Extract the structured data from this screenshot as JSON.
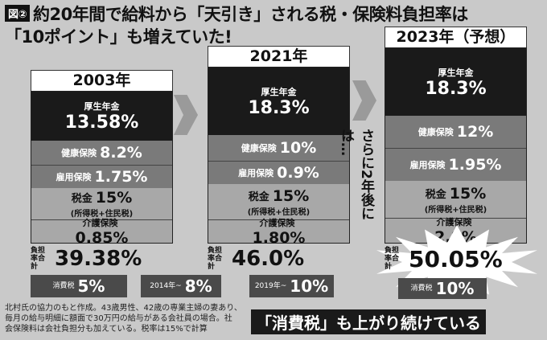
{
  "title": {
    "figure_label": "図②",
    "line1": "約20年間で給料から「天引き」される税・保険料負担率は",
    "line2": "「10ポイント」も増えていた!"
  },
  "arrow_text": "さらに2年後には…",
  "banner": "「消費税」も上がり続けている",
  "footnote": {
    "line1": "北村氏の協力のもと作成。43歳男性、42歳の専業主婦の妻あり、",
    "line2": "毎月の給与明細に額面で30万円の給与がある会社員の場合。社",
    "line3": "会保険料は会社負担分も加えている。税率は15%で計算"
  },
  "colors": {
    "dark": "#1a1a1a",
    "mid": "#7a7a7a",
    "light": "#a8a8a8",
    "background": "#c9c9c9"
  },
  "chart_data": {
    "type": "bar",
    "categories": [
      "2003年",
      "2021年",
      "2023年（予想）"
    ],
    "total_label": "負担率合計",
    "consumption_tax_label": "消費税",
    "years": [
      {
        "year": "2003年",
        "items": [
          {
            "name": "厚生年金",
            "value": 13.58,
            "display": "13.58%"
          },
          {
            "name": "健康保険",
            "value": 8.2,
            "display": "8.2%"
          },
          {
            "name": "雇用保険",
            "value": 1.75,
            "display": "1.75%"
          },
          {
            "name": "税金",
            "sub": "(所得税+住民税)",
            "value": 15,
            "display": "15%"
          },
          {
            "name": "介護保険",
            "value": 0.85,
            "display": "0.85%"
          }
        ],
        "total": 39.38,
        "total_display": "39.38%",
        "consumption_tax_prefix": "消費税",
        "consumption_tax": 5,
        "consumption_tax_display": "5%"
      },
      {
        "year": "2021年",
        "items": [
          {
            "name": "厚生年金",
            "value": 18.3,
            "display": "18.3%"
          },
          {
            "name": "健康保険",
            "value": 10,
            "display": "10%"
          },
          {
            "name": "雇用保険",
            "value": 0.9,
            "display": "0.9%"
          },
          {
            "name": "税金",
            "sub": "(所得税+住民税)",
            "value": 15,
            "display": "15%"
          },
          {
            "name": "介護保険",
            "value": 1.8,
            "display": "1.80%"
          }
        ],
        "total": 46.0,
        "total_display": "46.0%",
        "consumption_tax_prefix": "2014年~",
        "consumption_tax": 8,
        "consumption_tax_display": "8%"
      },
      {
        "year": "2023年（予想）",
        "items": [
          {
            "name": "厚生年金",
            "value": 18.3,
            "display": "18.3%"
          },
          {
            "name": "健康保険",
            "value": 12,
            "display": "12%"
          },
          {
            "name": "雇用保険",
            "value": 1.95,
            "display": "1.95%"
          },
          {
            "name": "税金",
            "sub": "(所得税+住民税)",
            "value": 15,
            "display": "15%"
          },
          {
            "name": "介護保険",
            "value": 2.8,
            "display": "2.8%"
          }
        ],
        "total": 50.05,
        "total_display": "50.05%",
        "consumption_tax_prefix": "2019年~",
        "consumption_tax": 10,
        "consumption_tax_display": "10%"
      }
    ]
  }
}
